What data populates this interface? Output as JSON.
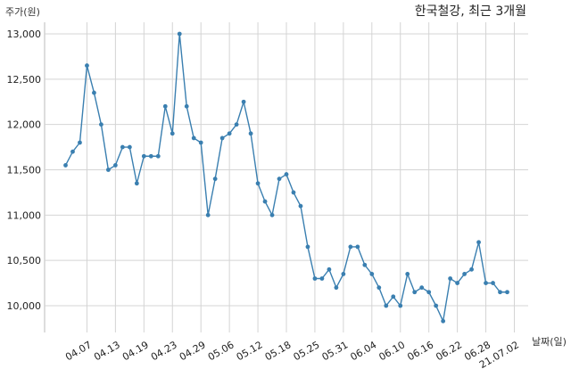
{
  "chart_data": {
    "type": "line",
    "title": "한국철강, 최근 3개월",
    "xlabel": "날짜(일)",
    "ylabel": "주가(원)",
    "ylim": [
      9700,
      13300
    ],
    "yticks": [
      10000,
      10500,
      11000,
      11500,
      12000,
      12500,
      13000
    ],
    "ytick_labels": [
      "10,000",
      "10,500",
      "11,000",
      "11,500",
      "12,000",
      "12,500",
      "13,000"
    ],
    "x_tick_labels": [
      "04.07",
      "04.13",
      "04.19",
      "04.23",
      "04.29",
      "05.06",
      "05.12",
      "05.18",
      "05.25",
      "05.31",
      "06.04",
      "06.10",
      "06.16",
      "06.22",
      "06.28",
      "21.07.02"
    ],
    "x_tick_index": [
      3,
      7,
      11,
      15,
      19,
      23,
      27,
      31,
      35,
      39,
      43,
      47,
      51,
      55,
      59,
      63
    ],
    "grid": true,
    "color": "#3a7fb0",
    "series": [
      {
        "values": [
          11550,
          11700,
          11800,
          12650,
          12350,
          12000,
          11500,
          11550,
          11750,
          11750,
          11350,
          11650,
          11650,
          11650,
          12200,
          11900,
          13000,
          12200,
          11850,
          11800,
          11000,
          11400,
          11850,
          11900,
          12000,
          12250,
          11900,
          11350,
          11150,
          11000,
          11400,
          11450,
          11250,
          11100,
          10650,
          10300,
          10300,
          10400,
          10200,
          10350,
          10650,
          10650,
          10450,
          10350,
          10200,
          10000,
          10100,
          10000,
          10350,
          10150,
          10200,
          10150,
          10000,
          9830,
          10300,
          10250,
          10350,
          10400,
          10700,
          10250,
          10250,
          10150,
          10150
        ]
      }
    ]
  }
}
